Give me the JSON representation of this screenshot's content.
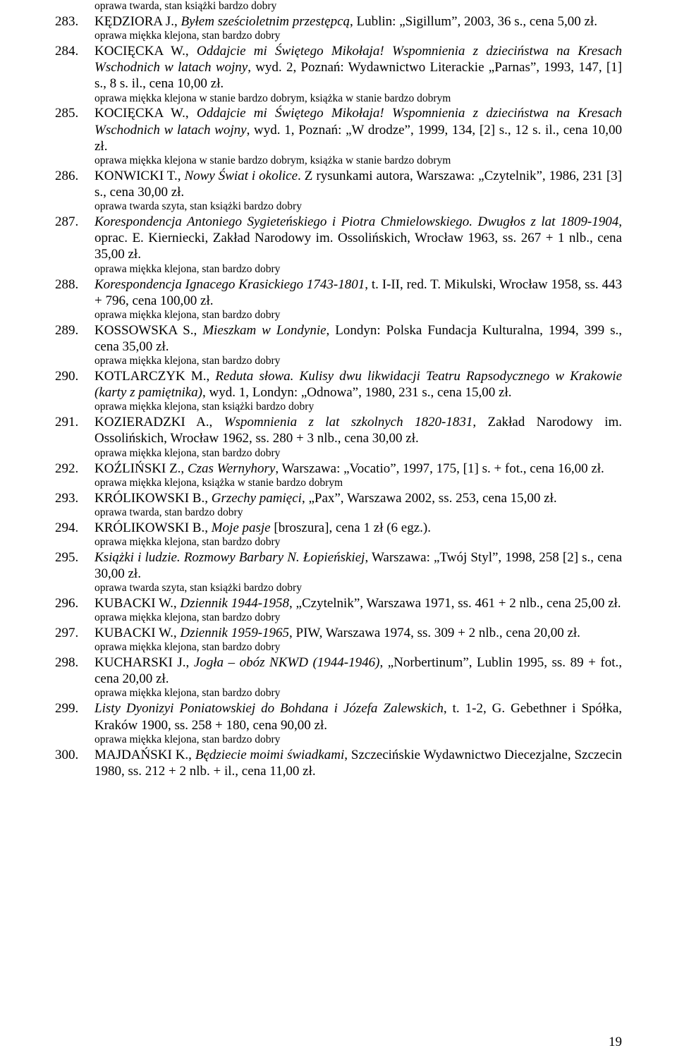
{
  "page_number": "19",
  "top_condition": "oprawa twarda, stan książki bardzo dobry",
  "entries": [
    {
      "num": "283.",
      "html": "KĘDZIORA J., <span class=\"ital\">Byłem sześcioletnim przestępcą</span>, Lublin: „Sigillum”, 2003, 36 s., cena 5,00 zł.",
      "cond": "oprawa miękka klejona, stan bardzo dobry"
    },
    {
      "num": "284.",
      "html": "KOCIĘCKA W., <span class=\"ital\">Oddajcie mi Świętego Mikołaja! Wspomnienia z dzieciństwa na Kresach Wschodnich w latach wojny</span>, wyd. 2, Poznań: Wydawnictwo Literackie „Parnas”, 1993, 147, [1] s., 8 s. il., cena 10,00 zł.",
      "cond": "oprawa miękka klejona w stanie bardzo dobrym, książka w stanie bardzo dobrym"
    },
    {
      "num": "285.",
      "html": "KOCIĘCKA W., <span class=\"ital\">Oddajcie mi Świętego Mikołaja! Wspomnienia z dzieciństwa na Kresach Wschodnich w latach wojny</span>, wyd. 1, Poznań: „W drodze”, 1999, 134, [2] s., 12 s. il., cena 10,00 zł.",
      "cond": "oprawa miękka klejona w stanie bardzo dobrym, książka w stanie bardzo dobrym"
    },
    {
      "num": "286.",
      "html": "KONWICKI T., <span class=\"ital\">Nowy Świat i okolice</span>. Z rysunkami autora, Warszawa: „Czytelnik”, 1986, 231 [3] s., cena 30,00 zł.",
      "cond": "oprawa twarda szyta, stan książki bardzo dobry"
    },
    {
      "num": "287.",
      "html": "<span class=\"ital\">Korespondencja Antoniego Sygieteńskiego i Piotra Chmielowskiego. Dwugłos z lat 1809-1904</span>, oprac. E. Kierniecki, Zakład Narodowy im. Ossolińskich, Wrocław 1963, ss. 267 + 1 nlb., cena 35,00 zł.",
      "cond": "oprawa miękka klejona, stan bardzo dobry"
    },
    {
      "num": "288.",
      "html": "<span class=\"ital\">Korespondencja Ignacego Krasickiego 1743-1801</span>, t. I-II, red. T. Mikulski, Wrocław 1958, ss. 443 + 796, cena 100,00 zł.",
      "cond": "oprawa miękka klejona, stan bardzo dobry"
    },
    {
      "num": "289.",
      "html": "KOSSOWSKA S., <span class=\"ital\">Mieszkam w Londynie</span>, Londyn: Polska Fundacja Kulturalna, 1994, 399 s., cena 35,00 zł.",
      "cond": "oprawa miękka klejona, stan bardzo dobry"
    },
    {
      "num": "290.",
      "html": "KOTLARCZYK M., <span class=\"ital\">Reduta słowa. Kulisy dwu likwidacji Teatru Rapsodycznego w Krakowie (karty z pamiętnika)</span>, wyd. 1, Londyn: „Odnowa”, 1980, 231 s., cena 15,00 zł.",
      "cond": "oprawa miękka klejona, stan książki bardzo dobry"
    },
    {
      "num": "291.",
      "html": "KOZIERADZKI A., <span class=\"ital\">Wspomnienia z lat szkolnych 1820-1831</span>, Zakład Narodowy im. Ossolińskich, Wrocław 1962, ss. 280 + 3 nlb., cena 30,00 zł.",
      "cond": "oprawa miękka klejona, stan bardzo dobry"
    },
    {
      "num": "292.",
      "html": "KOŹLIŃSKI Z., <span class=\"ital\">Czas Wernyhory</span>, Warszawa: „Vocatio”, 1997, 175, [1] s. + fot., cena 16,00 zł.",
      "cond": "oprawa miękka klejona, książka w stanie bardzo dobrym"
    },
    {
      "num": "293.",
      "html": "KRÓLIKOWSKI B., <span class=\"ital\">Grzechy pamięci</span>, „Pax”, Warszawa 2002, ss. 253, cena 15,00 zł.",
      "cond": "oprawa twarda, stan bardzo dobry"
    },
    {
      "num": "294.",
      "html": "KRÓLIKOWSKI B., <span class=\"ital\">Moje pasje</span> [broszura], cena 1 zł (6 egz.).",
      "cond": "oprawa miękka klejona, stan bardzo dobry"
    },
    {
      "num": "295.",
      "html": "<span class=\"ital\">Książki i ludzie. Rozmowy Barbary N. Łopieńskiej</span>, Warszawa: „Twój Styl”, 1998, 258 [2] s., cena 30,00 zł.",
      "cond": "oprawa twarda szyta, stan książki bardzo dobry"
    },
    {
      "num": "296.",
      "html": "KUBACKI W., <span class=\"ital\">Dziennik 1944-1958</span>, „Czytelnik”, Warszawa 1971, ss. 461 + 2 nlb., cena 25,00 zł.",
      "cond": "oprawa miękka klejona, stan bardzo dobry"
    },
    {
      "num": "297.",
      "html": "KUBACKI W., <span class=\"ital\">Dziennik 1959-1965</span>, PIW, Warszawa 1974, ss. 309 + 2 nlb., cena 20,00 zł.",
      "cond": "oprawa miękka klejona, stan bardzo dobry"
    },
    {
      "num": "298.",
      "html": "KUCHARSKI J., <span class=\"ital\">Jogła – obóz NKWD (1944-1946)</span>, „Norbertinum”, Lublin 1995, ss. 89 + fot., cena 20,00 zł.",
      "cond": "oprawa miękka klejona, stan bardzo dobry"
    },
    {
      "num": "299.",
      "html": "<span class=\"ital\">Listy Dyonizyi Poniatowskiej do Bohdana i Józefa Zalewskich</span>, t. 1-2, G. Gebethner i Spółka, Kraków 1900, ss. 258 + 180, cena 90,00 zł.",
      "cond": "oprawa miękka klejona, stan bardzo dobry"
    },
    {
      "num": "300.",
      "html": "MAJDAŃSKI K., <span class=\"ital\">Będziecie moimi świadkami</span>, Szczecińskie Wydawnictwo Diecezjalne, Szczecin 1980, ss. 212 + 2 nlb. + il., cena 11,00 zł.",
      "cond": ""
    }
  ]
}
